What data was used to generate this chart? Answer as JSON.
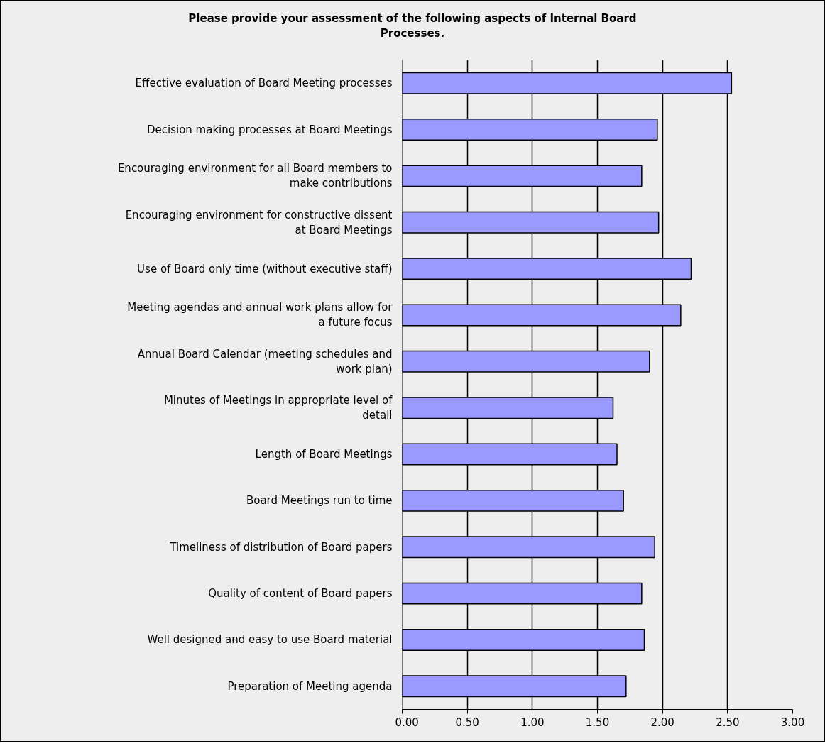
{
  "chart_data": {
    "type": "bar",
    "orientation": "horizontal",
    "title": "Please provide your assessment of the following aspects of Internal Board Processes.",
    "categories": [
      "Effective evaluation of Board Meeting processes",
      "Decision making processes at Board Meetings",
      "Encouraging environment for all Board members to make contributions",
      "Encouraging environment for constructive dissent at Board Meetings",
      "Use of Board only time (without executive staff)",
      "Meeting agendas and annual work plans allow for a future focus",
      "Annual Board Calendar (meeting schedules and work plan)",
      "Minutes of Meetings in appropriate level of detail",
      "Length of Board Meetings",
      "Board Meetings run to time",
      "Timeliness of distribution of Board papers",
      "Quality of content of Board papers",
      "Well designed and easy to use Board material",
      "Preparation of Meeting agenda"
    ],
    "values": [
      2.53,
      1.96,
      1.84,
      1.97,
      2.22,
      2.14,
      1.9,
      1.62,
      1.65,
      1.7,
      1.94,
      1.84,
      1.86,
      1.72
    ],
    "color": "#9999ff",
    "xlim": [
      0,
      3
    ],
    "xticks": [
      {
        "value": 0,
        "label": "0.00"
      },
      {
        "value": 0.5,
        "label": "0.50"
      },
      {
        "value": 1,
        "label": "1.00"
      },
      {
        "value": 1.5,
        "label": "1.50"
      },
      {
        "value": 2,
        "label": "2.00"
      },
      {
        "value": 2.5,
        "label": "2.50"
      },
      {
        "value": 3,
        "label": "3.00"
      }
    ],
    "grid": "x"
  }
}
